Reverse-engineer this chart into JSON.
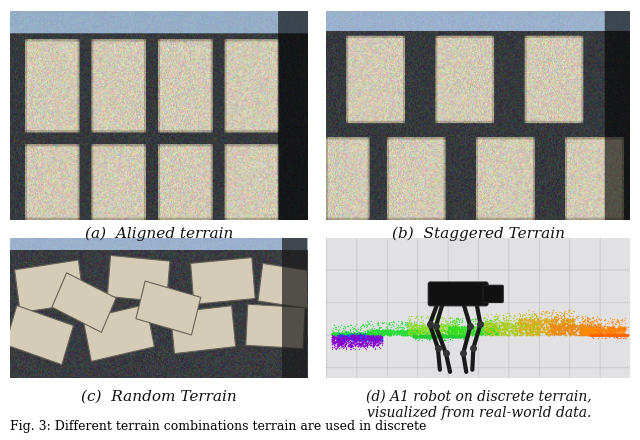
{
  "caption_a": "(a)  Aligned terrain",
  "caption_b": "(b)  Staggered Terrain",
  "caption_c": "(c)  Random Terrain",
  "caption_d": "(d) A1 robot on discrete terrain,\nvisualized from real-world data.",
  "fig_caption": "Fig. 3: Different terrain combinations terrain are used in discrete",
  "background_color": "#ffffff",
  "caption_fontsize": 11,
  "fig_caption_fontsize": 9,
  "floor_color": [
    50,
    50,
    55
  ],
  "stone_base_color": [
    210,
    200,
    175
  ],
  "stone_noise_scale": 30,
  "border_blue_color": [
    150,
    175,
    200
  ]
}
